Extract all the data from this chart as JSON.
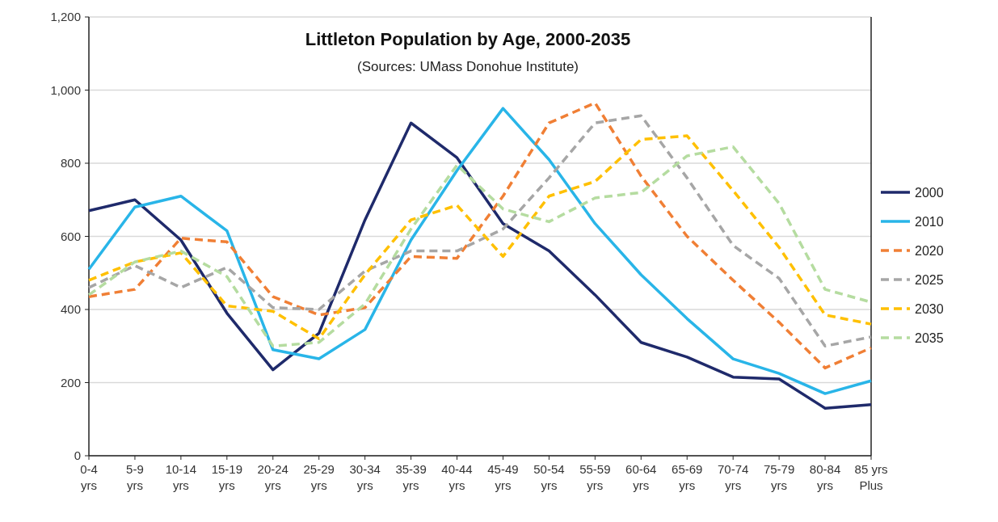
{
  "chart_data": {
    "type": "line",
    "title": "Littleton Population by Age, 2000-2035",
    "subtitle": "(Sources: UMass Donohue Institute)",
    "categories": [
      "0-4 yrs",
      "5-9 yrs",
      "10-14 yrs",
      "15-19 yrs",
      "20-24 yrs",
      "25-29 yrs",
      "30-34 yrs",
      "35-39 yrs",
      "40-44 yrs",
      "45-49 yrs",
      "50-54 yrs",
      "55-59 yrs",
      "60-64 yrs",
      "65-69 yrs",
      "70-74 yrs",
      "75-79 yrs",
      "80-84 yrs",
      "85 yrs Plus"
    ],
    "series": [
      {
        "name": "2000",
        "color": "#1f2a6b",
        "line_style": "solid",
        "values": [
          670,
          700,
          590,
          390,
          235,
          335,
          645,
          910,
          815,
          635,
          560,
          440,
          310,
          270,
          215,
          210,
          130,
          140
        ]
      },
      {
        "name": "2010",
        "color": "#29b5e8",
        "line_style": "solid",
        "values": [
          510,
          680,
          710,
          615,
          290,
          265,
          345,
          590,
          780,
          950,
          810,
          635,
          495,
          375,
          265,
          225,
          170,
          205
        ]
      },
      {
        "name": "2020",
        "color": "#f07f35",
        "line_style": "dashed",
        "values": [
          435,
          455,
          595,
          585,
          435,
          385,
          405,
          545,
          540,
          710,
          910,
          965,
          765,
          600,
          480,
          365,
          240,
          295
        ]
      },
      {
        "name": "2025",
        "color": "#a6a6a6",
        "line_style": "dashed",
        "values": [
          460,
          520,
          460,
          515,
          405,
          400,
          505,
          560,
          560,
          620,
          760,
          910,
          930,
          760,
          575,
          485,
          300,
          325
        ]
      },
      {
        "name": "2030",
        "color": "#ffc000",
        "line_style": "dashed",
        "values": [
          480,
          530,
          555,
          410,
          395,
          320,
          495,
          645,
          685,
          545,
          710,
          750,
          865,
          875,
          725,
          570,
          385,
          360
        ]
      },
      {
        "name": "2035",
        "color": "#b5dca0",
        "line_style": "dashed",
        "values": [
          440,
          530,
          560,
          490,
          300,
          310,
          415,
          620,
          795,
          675,
          640,
          705,
          720,
          820,
          845,
          690,
          455,
          420
        ]
      }
    ],
    "ylim": [
      0,
      1200
    ],
    "yticks": [
      0,
      {
        "value": 200,
        "label": "200"
      },
      {
        "value": 400,
        "label": "400"
      },
      {
        "value": 600,
        "label": "600"
      },
      {
        "value": 800,
        "label": "800"
      },
      {
        "value": 1000,
        "label": "1,000"
      },
      {
        "value": 1200,
        "label": "1,200"
      }
    ],
    "grid": "y",
    "legend": "right",
    "marker": "none"
  }
}
